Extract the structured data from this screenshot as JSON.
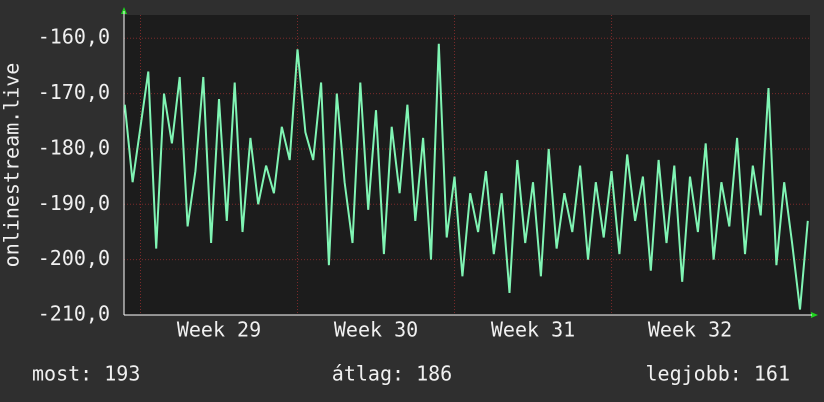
{
  "chart_data": {
    "type": "line",
    "y_label": "onlinestream.live",
    "x": [
      28.4,
      28.45,
      28.5,
      28.55,
      28.6,
      28.65,
      28.7,
      28.75,
      28.8,
      28.85,
      28.9,
      28.95,
      29,
      29.05,
      29.1,
      29.15,
      29.2,
      29.25,
      29.3,
      29.35,
      29.4,
      29.45,
      29.5,
      29.55,
      29.6,
      29.65,
      29.7,
      29.75,
      29.8,
      29.85,
      29.9,
      29.95,
      30,
      30.05,
      30.1,
      30.15,
      30.2,
      30.25,
      30.3,
      30.35,
      30.4,
      30.45,
      30.5,
      30.55,
      30.6,
      30.65,
      30.7,
      30.75,
      30.8,
      30.85,
      30.9,
      30.95,
      31,
      31.05,
      31.1,
      31.15,
      31.2,
      31.25,
      31.3,
      31.35,
      31.4,
      31.45,
      31.5,
      31.55,
      31.6,
      31.65,
      31.7,
      31.75,
      31.8,
      31.85,
      31.9,
      31.95,
      32,
      32.05,
      32.1,
      32.15,
      32.2,
      32.25,
      32.3,
      32.35,
      32.4,
      32.45,
      32.5,
      32.55,
      32.6,
      32.65,
      32.7,
      32.75
    ],
    "series": [
      {
        "name": "onlinestream.live",
        "color": "#80f5b4",
        "values": [
          -172,
          -186,
          -176,
          -166,
          -198,
          -170,
          -179,
          -167,
          -194,
          -184,
          -167,
          -197,
          -171,
          -193,
          -168,
          -195,
          -178,
          -190,
          -183,
          -188,
          -176,
          -182,
          -162,
          -177,
          -182,
          -168,
          -201,
          -170,
          -186,
          -197,
          -168,
          -191,
          -173,
          -199,
          -176,
          -188,
          -172,
          -193,
          -178,
          -200,
          -161,
          -196,
          -185,
          -203,
          -188,
          -195,
          -184,
          -199,
          -188,
          -206,
          -182,
          -197,
          -186,
          -203,
          -180,
          -198,
          -188,
          -195,
          -183,
          -200,
          -186,
          -196,
          -184,
          -199,
          -181,
          -193,
          -185,
          -202,
          -182,
          -197,
          -183,
          -204,
          -185,
          -195,
          -179,
          -200,
          -186,
          -194,
          -178,
          -199,
          -183,
          -192,
          -169,
          -201,
          -186,
          -197,
          -209,
          -193
        ]
      }
    ],
    "xlim": [
      28.395,
      32.764
    ],
    "ylim": [
      -210,
      -155.8
    ],
    "xticks": [
      {
        "value": 29,
        "label": "Week 29"
      },
      {
        "value": 30,
        "label": "Week 30"
      },
      {
        "value": 31,
        "label": "Week 31"
      },
      {
        "value": 32,
        "label": "Week 32"
      }
    ],
    "yticks": [
      {
        "value": -210,
        "label": "-210,0"
      },
      {
        "value": -200,
        "label": "-200,0"
      },
      {
        "value": -190,
        "label": "-190,0"
      },
      {
        "value": -180,
        "label": "-180,0"
      },
      {
        "value": -170,
        "label": "-170,0"
      },
      {
        "value": -160,
        "label": "-160,0"
      }
    ],
    "grid": true,
    "stats": [
      "most: 193",
      "átlag: 186",
      "legjobb: 161"
    ]
  }
}
